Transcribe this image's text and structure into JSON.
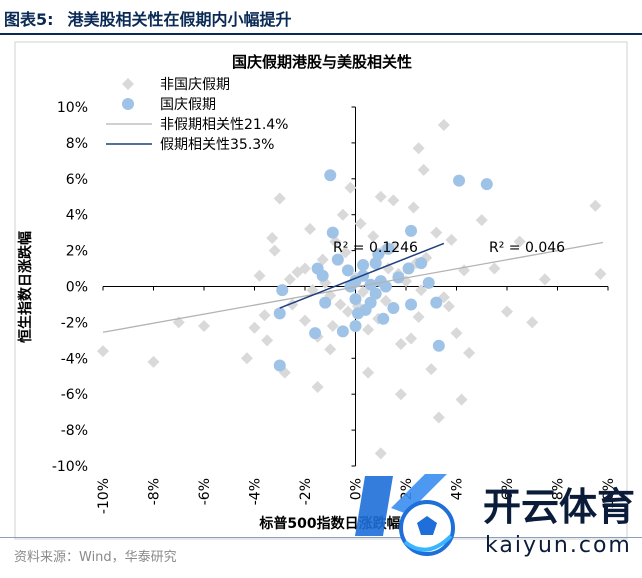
{
  "figure": {
    "number": "图表5:",
    "caption": "港美股相关性在假期内小幅提升",
    "source": "资料来源：Wind，华泰研究"
  },
  "watermark": {
    "brand_cn": "开云体育",
    "brand_en": "kaiyun.com"
  },
  "chart_data": {
    "type": "scatter",
    "title": "国庆假期港股与美股相关性",
    "xlabel": "标普500指数日涨跌幅",
    "ylabel": "恒生指数日涨跌幅",
    "xlim": [
      -10,
      10
    ],
    "ylim": [
      -10,
      10
    ],
    "x_ticks": [
      "-10%",
      "-8%",
      "-6%",
      "-4%",
      "-2%",
      "0%",
      "2%",
      "4%",
      "6%",
      "8%",
      "10%"
    ],
    "y_ticks": [
      "10%",
      "8%",
      "6%",
      "4%",
      "2%",
      "0%",
      "-2%",
      "-4%",
      "-6%",
      "-8%",
      "-10%"
    ],
    "legend": [
      "非国庆假期",
      "国庆假期",
      "非假期相关性21.4%",
      "假期相关性35.3%"
    ],
    "legend_position": "top-left",
    "series": [
      {
        "name": "非国庆假期",
        "marker": "diamond",
        "color": "#d9d9d9",
        "points": [
          [
            -10.0,
            -3.6
          ],
          [
            -8.0,
            -4.2
          ],
          [
            -7.0,
            -2.0
          ],
          [
            -6.0,
            -2.2
          ],
          [
            -4.3,
            -4.0
          ],
          [
            -4.0,
            -2.3
          ],
          [
            -3.8,
            0.6
          ],
          [
            -3.5,
            -3.0
          ],
          [
            -3.2,
            2.0
          ],
          [
            -3.0,
            4.9
          ],
          [
            -2.8,
            -4.8
          ],
          [
            -2.5,
            -1.0
          ],
          [
            -2.3,
            0.8
          ],
          [
            -2.0,
            -1.9
          ],
          [
            -1.8,
            3.2
          ],
          [
            -1.5,
            -2.8
          ],
          [
            -1.3,
            1.5
          ],
          [
            -1.0,
            -0.5
          ],
          [
            -0.8,
            2.5
          ],
          [
            -0.5,
            4.0
          ],
          [
            -0.3,
            -1.4
          ],
          [
            0.0,
            0.5
          ],
          [
            0.2,
            3.5
          ],
          [
            0.5,
            -2.4
          ],
          [
            0.8,
            1.2
          ],
          [
            1.0,
            5.0
          ],
          [
            1.2,
            -0.8
          ],
          [
            1.5,
            2.2
          ],
          [
            1.8,
            -3.2
          ],
          [
            2.0,
            0.3
          ],
          [
            2.3,
            4.4
          ],
          [
            2.5,
            -1.7
          ],
          [
            2.8,
            1.6
          ],
          [
            3.0,
            -4.6
          ],
          [
            3.2,
            3.0
          ],
          [
            3.5,
            -0.6
          ],
          [
            3.8,
            2.6
          ],
          [
            4.0,
            -2.6
          ],
          [
            4.3,
            0.9
          ],
          [
            4.5,
            -3.7
          ],
          [
            5.0,
            3.7
          ],
          [
            5.5,
            1.0
          ],
          [
            6.0,
            -1.4
          ],
          [
            6.5,
            2.5
          ],
          [
            7.0,
            -2.0
          ],
          [
            7.5,
            0.4
          ],
          [
            9.5,
            4.5
          ],
          [
            9.7,
            0.7
          ],
          [
            3.5,
            9.0
          ],
          [
            2.5,
            7.7
          ],
          [
            1.0,
            -9.3
          ],
          [
            -1.5,
            -5.6
          ],
          [
            1.8,
            -6.0
          ],
          [
            4.2,
            -6.3
          ],
          [
            -3.3,
            2.7
          ],
          [
            2.7,
            6.5
          ],
          [
            -1.0,
            -3.5
          ],
          [
            0.5,
            -4.8
          ],
          [
            1.5,
            4.8
          ],
          [
            -0.2,
            5.5
          ],
          [
            3.3,
            -7.3
          ],
          [
            -2.0,
            1.0
          ],
          [
            0.7,
            2.8
          ],
          [
            2.2,
            -2.9
          ],
          [
            -1.2,
            0.2
          ],
          [
            1.3,
            1.0
          ],
          [
            -0.6,
            -1.0
          ],
          [
            0.3,
            -0.3
          ],
          [
            1.7,
            0.7
          ],
          [
            -1.7,
            -0.2
          ],
          [
            2.6,
            -0.2
          ],
          [
            -2.6,
            0.4
          ],
          [
            0.9,
            -1.8
          ],
          [
            -0.4,
            1.9
          ],
          [
            3.7,
            -1.1
          ],
          [
            -3.6,
            -1.6
          ],
          [
            1.1,
            2.0
          ],
          [
            -0.9,
            -2.2
          ],
          [
            2.4,
            1.3
          ],
          [
            0.1,
            -1.1
          ]
        ]
      },
      {
        "name": "国庆假期",
        "marker": "circle",
        "color": "#9fc3e7",
        "points": [
          [
            -1.0,
            6.2
          ],
          [
            4.1,
            5.9
          ],
          [
            5.2,
            5.7
          ],
          [
            -0.9,
            3.0
          ],
          [
            2.2,
            3.1
          ],
          [
            -2.9,
            -0.2
          ],
          [
            -3.0,
            -1.5
          ],
          [
            -3.0,
            -4.4
          ],
          [
            -1.6,
            -2.6
          ],
          [
            -1.2,
            -0.9
          ],
          [
            -1.3,
            0.6
          ],
          [
            -1.5,
            1.0
          ],
          [
            -0.7,
            1.5
          ],
          [
            -0.3,
            0.9
          ],
          [
            0.0,
            0.3
          ],
          [
            0.3,
            0.6
          ],
          [
            0.0,
            -0.7
          ],
          [
            0.1,
            -1.5
          ],
          [
            0.0,
            -2.2
          ],
          [
            0.4,
            -1.3
          ],
          [
            0.6,
            0.1
          ],
          [
            0.8,
            -0.4
          ],
          [
            1.0,
            0.3
          ],
          [
            1.2,
            0.0
          ],
          [
            1.1,
            -1.8
          ],
          [
            0.8,
            1.3
          ],
          [
            0.9,
            1.8
          ],
          [
            1.3,
            2.1
          ],
          [
            2.1,
            1.0
          ],
          [
            2.6,
            1.3
          ],
          [
            2.9,
            0.2
          ],
          [
            3.2,
            -0.9
          ],
          [
            2.2,
            -1.0
          ],
          [
            1.5,
            -1.2
          ],
          [
            -0.5,
            -2.5
          ],
          [
            3.3,
            -3.3
          ],
          [
            0.3,
            1.2
          ],
          [
            -0.2,
            0.0
          ],
          [
            1.7,
            0.5
          ],
          [
            0.6,
            -0.9
          ]
        ]
      }
    ],
    "trendlines": [
      {
        "name": "非假期相关性21.4%",
        "color": "#b3b3b3",
        "x": [
          -10,
          9.8
        ],
        "y": [
          -2.55,
          2.45
        ],
        "r2_label": "R² = 0.046"
      },
      {
        "name": "假期相关性35.3%",
        "color": "#1f3f7f",
        "x": [
          -3.0,
          3.5
        ],
        "y": [
          -1.2,
          2.4
        ],
        "r2_label": "R² = 0.1246"
      }
    ]
  }
}
